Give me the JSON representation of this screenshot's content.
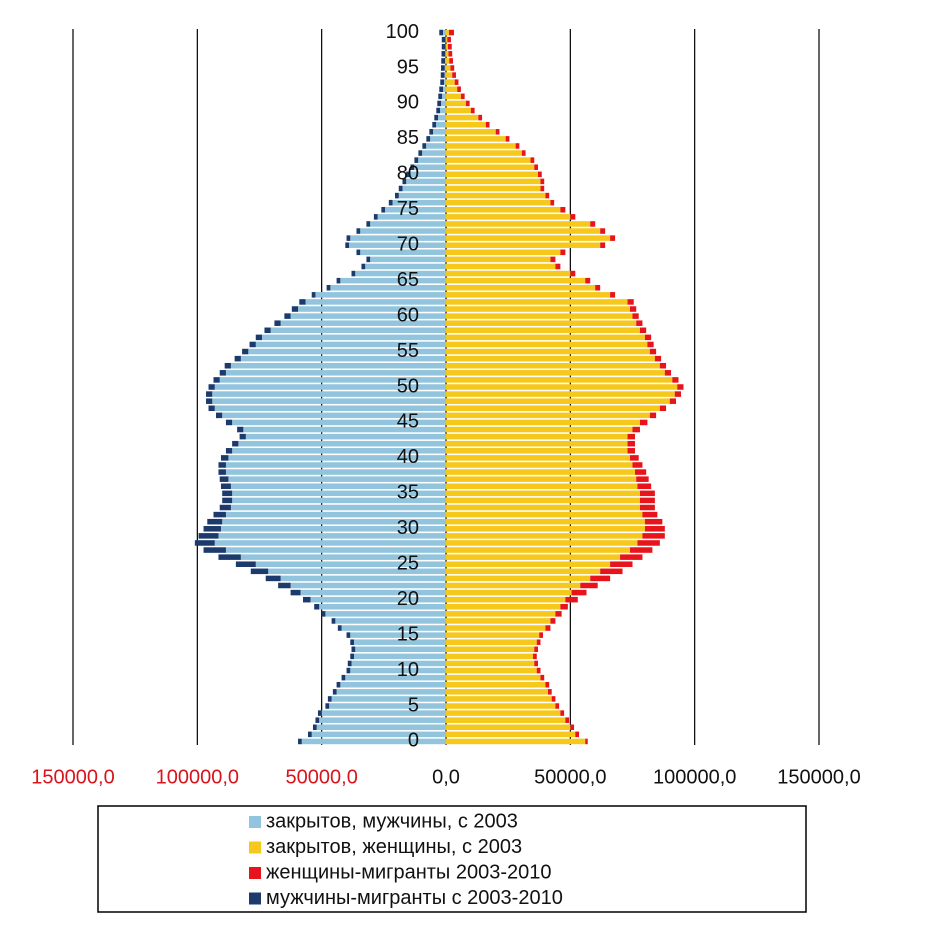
{
  "chart_data": {
    "type": "population-pyramid",
    "stacked": true,
    "grid": true,
    "categories": [
      "0",
      null,
      null,
      null,
      null,
      "5",
      null,
      null,
      null,
      null,
      "10",
      null,
      null,
      null,
      null,
      "15",
      null,
      null,
      null,
      null,
      "20",
      null,
      null,
      null,
      null,
      "25",
      null,
      null,
      null,
      null,
      "30",
      null,
      null,
      null,
      null,
      "35",
      null,
      null,
      null,
      null,
      "40",
      null,
      null,
      null,
      null,
      "45",
      null,
      null,
      null,
      null,
      "50",
      null,
      null,
      null,
      null,
      "55",
      null,
      null,
      null,
      null,
      "60",
      null,
      null,
      null,
      null,
      "65",
      null,
      null,
      null,
      null,
      "70",
      null,
      null,
      null,
      null,
      "75",
      null,
      null,
      null,
      null,
      "80",
      null,
      null,
      null,
      null,
      "85",
      null,
      null,
      null,
      null,
      "90",
      null,
      null,
      null,
      null,
      "95",
      null,
      null,
      null,
      null,
      "100"
    ],
    "xlim": [
      -150000,
      150000
    ],
    "xticks": [
      {
        "value": -150000,
        "label": "150000,0"
      },
      {
        "value": -100000,
        "label": "100000,0"
      },
      {
        "value": -50000,
        "label": "50000,0"
      },
      {
        "value": 0,
        "label": "0,0"
      },
      {
        "value": 50000,
        "label": "50000,0"
      },
      {
        "value": 100000,
        "label": "100000,0"
      },
      {
        "value": 150000,
        "label": "150000,0"
      }
    ],
    "series": [
      {
        "name": "закрытов, мужчины, с 2003",
        "color": "#92c5dd",
        "values": [
          -58000,
          -54000,
          -52000,
          -51000,
          -50000,
          -47000,
          -46000,
          -44000,
          -42500,
          -40500,
          -38500,
          -38000,
          -37000,
          -36500,
          -37000,
          -38500,
          -42000,
          -44500,
          -48500,
          -51000,
          -54500,
          -58500,
          -62500,
          -66500,
          -71500,
          -76500,
          -82500,
          -88500,
          -93000,
          -91500,
          -90500,
          -90000,
          -88500,
          -86500,
          -86000,
          -86000,
          -86500,
          -87500,
          -88500,
          -88500,
          -87500,
          -86000,
          -83500,
          -80500,
          -81500,
          -86000,
          -90000,
          -93000,
          -94000,
          -94000,
          -93000,
          -91000,
          -88500,
          -86500,
          -82500,
          -79500,
          -76500,
          -74000,
          -70500,
          -66500,
          -62500,
          -59500,
          -56500,
          -52500,
          -46500,
          -42500,
          -36500,
          -32500,
          -30500,
          -34500,
          -39000,
          -38500,
          -34500,
          -30500,
          -27500,
          -24500,
          -21500,
          -19000,
          -17500,
          -16000,
          -14500,
          -12800,
          -11200,
          -9600,
          -8000,
          -6400,
          -5200,
          -4000,
          -3200,
          -2400,
          -2000,
          -1600,
          -1200,
          -800,
          -600,
          -500,
          -400,
          -300,
          -200,
          -200,
          -1200
        ]
      },
      {
        "name": "закрытов, женщины,  с 2003",
        "color": "#f6c81c",
        "values": [
          56000,
          52000,
          50000,
          48000,
          46000,
          44000,
          42500,
          41000,
          40000,
          38000,
          36500,
          35500,
          35000,
          35500,
          36500,
          37500,
          40000,
          42000,
          44000,
          46000,
          48000,
          50500,
          54000,
          58000,
          62000,
          66000,
          70000,
          74000,
          77000,
          79000,
          80000,
          80000,
          79000,
          78000,
          78000,
          78000,
          77000,
          76500,
          76000,
          75000,
          74000,
          73000,
          73000,
          73000,
          75000,
          78000,
          82000,
          86000,
          90000,
          92000,
          93000,
          91000,
          88000,
          86000,
          84000,
          82000,
          81000,
          80000,
          78000,
          76500,
          75000,
          74000,
          73000,
          66000,
          60000,
          56000,
          50000,
          44000,
          42000,
          46000,
          62000,
          66000,
          62000,
          58000,
          50000,
          46000,
          42000,
          40000,
          38000,
          38000,
          37000,
          35500,
          34000,
          30500,
          28000,
          24000,
          20000,
          16000,
          13000,
          10000,
          8000,
          6000,
          4500,
          3500,
          2500,
          1800,
          1300,
          1000,
          800,
          500,
          1200
        ]
      },
      {
        "name": "женщины-мигранты  2003-2010",
        "color": "#e8141c",
        "values": [
          1000,
          1500,
          1500,
          1500,
          1500,
          1500,
          1500,
          1500,
          1500,
          1500,
          1500,
          1500,
          1500,
          1500,
          1500,
          1500,
          2000,
          2000,
          2500,
          3000,
          5000,
          6000,
          7000,
          8000,
          9000,
          9000,
          9000,
          9000,
          9000,
          9000,
          8000,
          7000,
          6000,
          6000,
          6000,
          6000,
          5500,
          5000,
          4500,
          4000,
          3500,
          3000,
          3000,
          3000,
          3000,
          3000,
          2500,
          2500,
          2500,
          2500,
          2500,
          2500,
          2500,
          2500,
          2500,
          2500,
          2500,
          2500,
          2500,
          2500,
          2500,
          2500,
          2500,
          2000,
          2000,
          2000,
          2000,
          2000,
          2000,
          2000,
          2000,
          2000,
          2000,
          2000,
          2000,
          2000,
          1500,
          1500,
          1500,
          1500,
          1500,
          1500,
          1500,
          1500,
          1500,
          1500,
          1500,
          1500,
          1500,
          1500,
          1500,
          1500,
          1500,
          1500,
          1500,
          1500,
          1500,
          1500,
          1500,
          1500,
          2000
        ]
      },
      {
        "name": "мужчины-мигранты  с 2003-2010",
        "color": "#1c3a6c",
        "values": [
          -1500,
          -1500,
          -1500,
          -1500,
          -1500,
          -1500,
          -1500,
          -1500,
          -1500,
          -1500,
          -1500,
          -1500,
          -1500,
          -1500,
          -1500,
          -1500,
          -1500,
          -1500,
          -1500,
          -2000,
          -3000,
          -4000,
          -5000,
          -6000,
          -7000,
          -8000,
          -9000,
          -9000,
          -8000,
          -8000,
          -7000,
          -6000,
          -5000,
          -4500,
          -4000,
          -4000,
          -4000,
          -3500,
          -3000,
          -3000,
          -3000,
          -2500,
          -2500,
          -2500,
          -2500,
          -2500,
          -2500,
          -2500,
          -2500,
          -2500,
          -2500,
          -2500,
          -2500,
          -2500,
          -2500,
          -2500,
          -2500,
          -2500,
          -2500,
          -2500,
          -2500,
          -2500,
          -2500,
          -1500,
          -1500,
          -1500,
          -1500,
          -1500,
          -1500,
          -1500,
          -1500,
          -1500,
          -1500,
          -1500,
          -1500,
          -1500,
          -1500,
          -1500,
          -1500,
          -1500,
          -1500,
          -1500,
          -1500,
          -1500,
          -1500,
          -1500,
          -1500,
          -1500,
          -1500,
          -1500,
          -1500,
          -1500,
          -1500,
          -1500,
          -1500,
          -1500,
          -1500,
          -1500,
          -1500,
          -1500,
          -1500
        ]
      }
    ]
  }
}
